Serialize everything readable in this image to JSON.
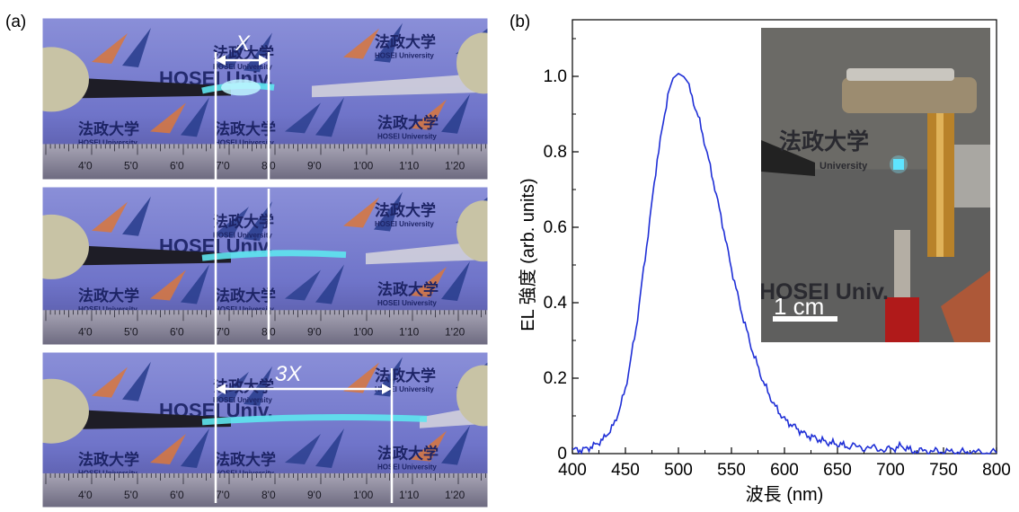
{
  "panel_a": {
    "label": "(a)",
    "photos": [
      {
        "overlay_label": "X",
        "stretch": 1
      },
      {
        "overlay_label": "",
        "stretch": 2
      },
      {
        "overlay_label": "3X",
        "stretch": 3
      }
    ],
    "logo_text_jp": "法政大学",
    "logo_text_en": "HOSEI University",
    "brand_text": "HOSEI Univ.",
    "ruler_ticks": [
      "4'0",
      "5'0",
      "6'0",
      "7'0",
      "8'0",
      "9'0",
      "1'00",
      "1'10",
      "1'20"
    ]
  },
  "panel_b": {
    "label": "(b)",
    "inset": {
      "logo_text_jp": "法政大学",
      "logo_text_en": "University",
      "brand_text": "HOSEI Univ.",
      "scale_bar_label": "1 cm"
    }
  },
  "chart_data": {
    "type": "line",
    "xlabel": "波長 (nm)",
    "ylabel": "EL 強度 (arb. units)",
    "xlim": [
      400,
      800
    ],
    "ylim": [
      0,
      1.15
    ],
    "xticks": [
      "400",
      "450",
      "500",
      "550",
      "600",
      "650",
      "700",
      "750",
      "800"
    ],
    "yticks": [
      "0",
      "0.2",
      "0.4",
      "0.6",
      "0.8",
      "1.0"
    ],
    "series": [
      {
        "color": "#1f2fd6",
        "x": [
          400,
          410,
          420,
          430,
          440,
          450,
          460,
          470,
          480,
          490,
          495,
          500,
          505,
          510,
          520,
          530,
          540,
          550,
          560,
          570,
          580,
          590,
          600,
          610,
          620,
          630,
          640,
          650,
          660,
          680,
          700,
          710,
          720,
          750,
          780,
          800
        ],
        "y": [
          0.01,
          0.01,
          0.02,
          0.04,
          0.08,
          0.17,
          0.33,
          0.55,
          0.78,
          0.95,
          0.99,
          1.0,
          0.99,
          0.97,
          0.88,
          0.76,
          0.63,
          0.49,
          0.37,
          0.27,
          0.19,
          0.13,
          0.09,
          0.07,
          0.05,
          0.04,
          0.03,
          0.025,
          0.02,
          0.015,
          0.01,
          0.02,
          0.008,
          0.005,
          0.003,
          0.002
        ]
      }
    ]
  }
}
